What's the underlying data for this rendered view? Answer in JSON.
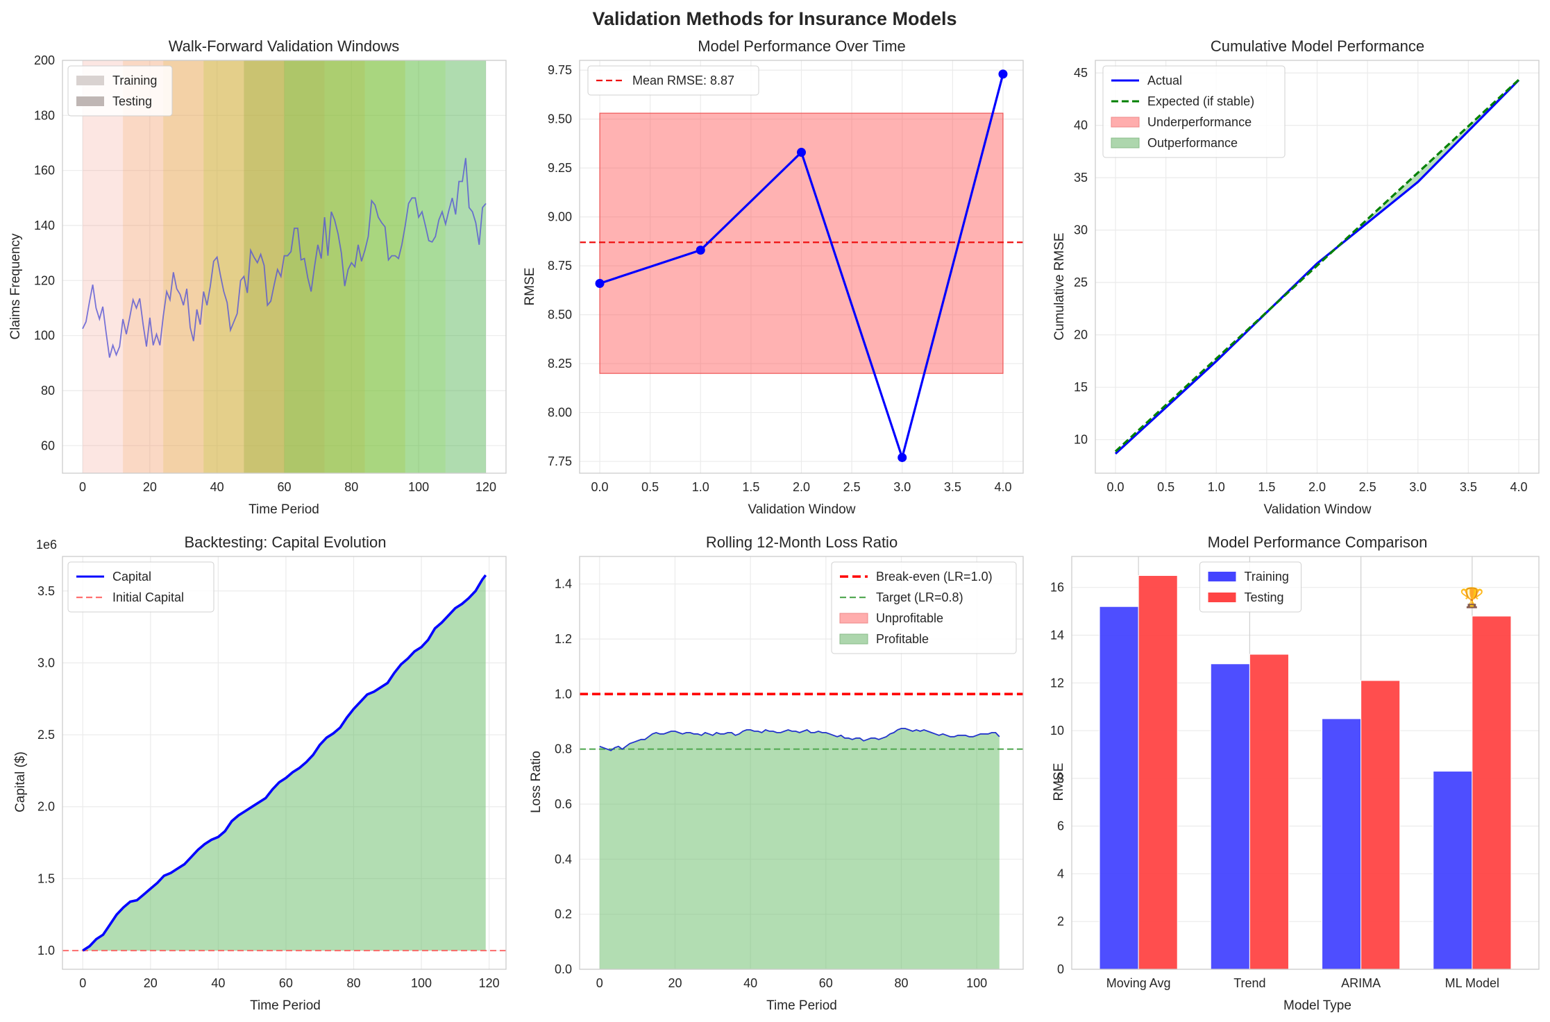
{
  "figure_title": "Validation Methods for Insurance Models",
  "chart_data": [
    {
      "id": "p1",
      "type": "line",
      "title": "Walk-Forward Validation Windows",
      "xlabel": "Time Period",
      "ylabel": "Claims Frequency",
      "xlim": [
        -6,
        126
      ],
      "ylim": [
        50,
        200
      ],
      "xticks": [
        0,
        20,
        40,
        60,
        80,
        100,
        120
      ],
      "yticks": [
        60,
        80,
        100,
        120,
        140,
        160,
        180,
        200
      ],
      "legend": [
        {
          "label": "Training",
          "color": "#d9d2d0"
        },
        {
          "label": "Testing",
          "color": "#bfb6b4"
        }
      ],
      "windows": [
        {
          "train": [
            0,
            48
          ],
          "test": [
            48,
            60
          ]
        },
        {
          "train": [
            12,
            60
          ],
          "test": [
            60,
            72
          ]
        },
        {
          "train": [
            24,
            72
          ],
          "test": [
            72,
            84
          ]
        },
        {
          "train": [
            36,
            84
          ],
          "test": [
            84,
            96
          ]
        },
        {
          "train": [
            48,
            96
          ],
          "test": [
            96,
            108
          ]
        },
        {
          "train": [
            60,
            108
          ],
          "test": [
            108,
            120
          ]
        }
      ],
      "window_colors": [
        "#f08070",
        "#f5a050",
        "#d8b830",
        "#a8c820",
        "#70c840",
        "#38a838"
      ],
      "series": [
        {
          "name": "Claims",
          "color": "#5555d5",
          "values": [
            102.5,
            105,
            112,
            118.5,
            110,
            106,
            110.5,
            101,
            92,
            96.5,
            93,
            96,
            106,
            100.5,
            106.5,
            113,
            110,
            113.5,
            104,
            96,
            106.5,
            96.5,
            100.5,
            96.5,
            107,
            116,
            113,
            123,
            117,
            115,
            111,
            117,
            103,
            98,
            109.5,
            104,
            116,
            111,
            118,
            127,
            128.5,
            122,
            116,
            112,
            102,
            105,
            108,
            120,
            121.5,
            115.5,
            131,
            128.5,
            126.5,
            129.5,
            125.5,
            111,
            112.5,
            118.5,
            124,
            121.5,
            129,
            129,
            130.5,
            139,
            139,
            127.5,
            128,
            121,
            116,
            125,
            133,
            128,
            143,
            129,
            145,
            142,
            137,
            130,
            118,
            124,
            126.5,
            125,
            133,
            127,
            131,
            136,
            149,
            147.5,
            143,
            141,
            139.5,
            127.5,
            129,
            129,
            128,
            133,
            140,
            148,
            150,
            150,
            143,
            145,
            140,
            134.5,
            134,
            136,
            142,
            145,
            140.5,
            145.5,
            150,
            144,
            156,
            156,
            164.5,
            146.5,
            145,
            141,
            133,
            146.5,
            148
          ]
        }
      ]
    },
    {
      "id": "p2",
      "type": "line",
      "title": "Model Performance Over Time",
      "xlabel": "Validation Window",
      "ylabel": "RMSE",
      "xlim": [
        -0.2,
        4.2
      ],
      "ylim": [
        7.69,
        9.8
      ],
      "xticks": [
        0.0,
        0.5,
        1.0,
        1.5,
        2.0,
        2.5,
        3.0,
        3.5,
        4.0
      ],
      "yticks": [
        7.75,
        8.0,
        8.25,
        8.5,
        8.75,
        9.0,
        9.25,
        9.5,
        9.75
      ],
      "x": [
        0,
        1,
        2,
        3,
        4
      ],
      "values": [
        8.66,
        8.83,
        9.33,
        7.77,
        9.73
      ],
      "mean": 8.87,
      "band": [
        8.2,
        9.53
      ],
      "legend": [
        {
          "label": "Mean RMSE: 8.87",
          "color": "#ff0000"
        }
      ]
    },
    {
      "id": "p3",
      "type": "line",
      "title": "Cumulative Model Performance",
      "xlabel": "Validation Window",
      "ylabel": "Cumulative RMSE",
      "xlim": [
        -0.2,
        4.2
      ],
      "ylim": [
        6.8,
        46.2
      ],
      "xticks": [
        0.0,
        0.5,
        1.0,
        1.5,
        2.0,
        2.5,
        3.0,
        3.5,
        4.0
      ],
      "yticks": [
        10,
        15,
        20,
        25,
        30,
        35,
        40,
        45
      ],
      "x": [
        0,
        1,
        2,
        3,
        4
      ],
      "series": [
        {
          "name": "Actual",
          "values": [
            8.66,
            17.49,
            26.82,
            34.59,
            44.32
          ],
          "color": "#0000ff"
        },
        {
          "name": "Expected (if stable)",
          "values": [
            8.87,
            17.74,
            26.61,
            35.48,
            44.35
          ],
          "color": "#008000"
        }
      ],
      "legend": [
        {
          "label": "Actual",
          "color": "#0000ff"
        },
        {
          "label": "Expected (if stable)",
          "color": "#008000"
        },
        {
          "label": "Underperformance",
          "color": "#ff9999"
        },
        {
          "label": "Outperformance",
          "color": "#99cc99"
        }
      ]
    },
    {
      "id": "p4",
      "type": "area",
      "title": "Backtesting: Capital Evolution",
      "xlabel": "Time Period",
      "ylabel": "Capital ($)",
      "offset_label": "1e6",
      "xlim": [
        -6,
        125
      ],
      "ylim": [
        0.87,
        3.74
      ],
      "xticks": [
        0,
        20,
        40,
        60,
        80,
        100,
        120
      ],
      "yticks": [
        1.0,
        1.5,
        2.0,
        2.5,
        3.0,
        3.5
      ],
      "initial": 1.0,
      "anchors": [
        [
          0,
          1.0
        ],
        [
          2,
          1.03
        ],
        [
          4,
          1.08
        ],
        [
          6,
          1.11
        ],
        [
          8,
          1.18
        ],
        [
          10,
          1.25
        ],
        [
          12,
          1.3
        ],
        [
          14,
          1.34
        ],
        [
          16,
          1.35
        ],
        [
          18,
          1.39
        ],
        [
          20,
          1.43
        ],
        [
          22,
          1.47
        ],
        [
          24,
          1.52
        ],
        [
          26,
          1.54
        ],
        [
          28,
          1.57
        ],
        [
          30,
          1.6
        ],
        [
          32,
          1.65
        ],
        [
          34,
          1.7
        ],
        [
          36,
          1.74
        ],
        [
          38,
          1.77
        ],
        [
          40,
          1.79
        ],
        [
          42,
          1.83
        ],
        [
          44,
          1.9
        ],
        [
          46,
          1.94
        ],
        [
          48,
          1.97
        ],
        [
          50,
          2.0
        ],
        [
          52,
          2.03
        ],
        [
          54,
          2.06
        ],
        [
          56,
          2.12
        ],
        [
          58,
          2.17
        ],
        [
          60,
          2.2
        ],
        [
          62,
          2.24
        ],
        [
          64,
          2.27
        ],
        [
          66,
          2.31
        ],
        [
          68,
          2.36
        ],
        [
          70,
          2.43
        ],
        [
          72,
          2.48
        ],
        [
          74,
          2.51
        ],
        [
          76,
          2.55
        ],
        [
          78,
          2.62
        ],
        [
          80,
          2.68
        ],
        [
          82,
          2.73
        ],
        [
          84,
          2.78
        ],
        [
          86,
          2.8
        ],
        [
          88,
          2.83
        ],
        [
          90,
          2.86
        ],
        [
          92,
          2.93
        ],
        [
          94,
          2.99
        ],
        [
          96,
          3.03
        ],
        [
          98,
          3.08
        ],
        [
          100,
          3.11
        ],
        [
          102,
          3.16
        ],
        [
          104,
          3.24
        ],
        [
          106,
          3.28
        ],
        [
          108,
          3.33
        ],
        [
          110,
          3.38
        ],
        [
          112,
          3.41
        ],
        [
          114,
          3.45
        ],
        [
          116,
          3.5
        ],
        [
          118,
          3.58
        ],
        [
          119,
          3.61
        ]
      ],
      "legend": [
        {
          "label": "Capital",
          "color": "#0000ff"
        },
        {
          "label": "Initial Capital",
          "color": "#ff7070"
        }
      ]
    },
    {
      "id": "p5",
      "type": "area",
      "title": "Rolling 12-Month Loss Ratio",
      "xlabel": "Time Period",
      "ylabel": "Loss Ratio",
      "xlim": [
        -5.3,
        112.3
      ],
      "ylim": [
        0,
        1.5
      ],
      "xticks": [
        0,
        20,
        40,
        60,
        80,
        100
      ],
      "yticks": [
        0.0,
        0.2,
        0.4,
        0.6,
        0.8,
        1.0,
        1.2,
        1.4
      ],
      "break_even": 1.0,
      "target": 0.8,
      "values": [
        0.81,
        0.805,
        0.8,
        0.795,
        0.805,
        0.81,
        0.8,
        0.81,
        0.82,
        0.825,
        0.83,
        0.835,
        0.835,
        0.845,
        0.855,
        0.86,
        0.855,
        0.855,
        0.86,
        0.865,
        0.865,
        0.86,
        0.855,
        0.86,
        0.86,
        0.855,
        0.855,
        0.85,
        0.86,
        0.855,
        0.85,
        0.86,
        0.855,
        0.855,
        0.86,
        0.86,
        0.85,
        0.855,
        0.865,
        0.87,
        0.87,
        0.865,
        0.865,
        0.86,
        0.87,
        0.865,
        0.865,
        0.86,
        0.86,
        0.865,
        0.87,
        0.865,
        0.865,
        0.86,
        0.865,
        0.87,
        0.86,
        0.86,
        0.865,
        0.86,
        0.86,
        0.855,
        0.85,
        0.845,
        0.85,
        0.84,
        0.84,
        0.835,
        0.84,
        0.84,
        0.83,
        0.835,
        0.84,
        0.84,
        0.835,
        0.84,
        0.845,
        0.855,
        0.86,
        0.87,
        0.875,
        0.875,
        0.87,
        0.865,
        0.87,
        0.865,
        0.87,
        0.865,
        0.86,
        0.855,
        0.85,
        0.855,
        0.85,
        0.845,
        0.845,
        0.85,
        0.85,
        0.85,
        0.845,
        0.845,
        0.85,
        0.855,
        0.855,
        0.855,
        0.86,
        0.86,
        0.845
      ],
      "legend": [
        {
          "label": "Break-even (LR=1.0)",
          "color": "#ff0000"
        },
        {
          "label": "Target (LR=0.8)",
          "color": "#55aa55"
        },
        {
          "label": "Unprofitable",
          "color": "#ff9999"
        },
        {
          "label": "Profitable",
          "color": "#99cc99"
        }
      ]
    },
    {
      "id": "p6",
      "type": "bar",
      "title": "Model Performance Comparison",
      "xlabel": "Model Type",
      "ylabel": "RMSE",
      "categories": [
        "Moving Avg",
        "Trend",
        "ARIMA",
        "ML Model"
      ],
      "ylim": [
        0,
        17.3
      ],
      "yticks": [
        0,
        2,
        4,
        6,
        8,
        10,
        12,
        14,
        16
      ],
      "series": [
        {
          "name": "Training",
          "values": [
            15.2,
            12.8,
            10.5,
            8.3
          ],
          "color": "#4444ff"
        },
        {
          "name": "Testing",
          "values": [
            16.5,
            13.2,
            12.1,
            14.8
          ],
          "color": "#ff4444"
        }
      ],
      "annotation": "🏆"
    }
  ]
}
